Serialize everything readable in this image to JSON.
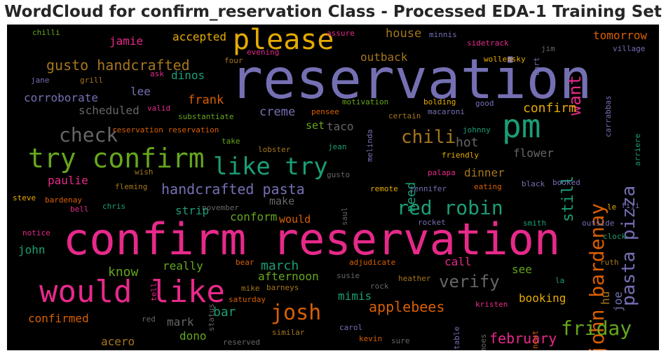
{
  "title": "WordCloud for confirm_reservation Class - Processed EDA-1 Training Set",
  "chart_data": {
    "type": "wordcloud",
    "title": "WordCloud for confirm_reservation Class - Processed EDA-1 Training Set",
    "background": "#000000",
    "colormap": "Dark2",
    "words": [
      {
        "text": "reservation",
        "color": "#7570b3"
      },
      {
        "text": "confirm reservation",
        "color": "#e7298a"
      },
      {
        "text": "would like",
        "color": "#e7298a"
      },
      {
        "text": "try confirm",
        "color": "#66a61e"
      },
      {
        "text": "please",
        "color": "#e6ab02"
      },
      {
        "text": "pm",
        "color": "#1b9e77"
      },
      {
        "text": "like try",
        "color": "#1b9e77"
      },
      {
        "text": "check",
        "color": "#666666"
      },
      {
        "text": "red robin",
        "color": "#1b9e77"
      },
      {
        "text": "josh",
        "color": "#d95f02"
      },
      {
        "text": "john bardenay",
        "color": "#d95f02"
      },
      {
        "text": "pasta pizza",
        "color": "#7570b3"
      },
      {
        "text": "friday",
        "color": "#66a61e"
      },
      {
        "text": "gusto handcrafted",
        "color": "#a6761d"
      },
      {
        "text": "chili",
        "color": "#a6761d"
      },
      {
        "text": "handcrafted pasta",
        "color": "#7570b3"
      },
      {
        "text": "want",
        "color": "#e7298a"
      },
      {
        "text": "verify",
        "color": "#666666"
      },
      {
        "text": "applebees",
        "color": "#d95f02"
      },
      {
        "text": "february",
        "color": "#e7298a"
      },
      {
        "text": "still",
        "color": "#1b9e77"
      },
      {
        "text": "confirm",
        "color": "#e6ab02"
      },
      {
        "text": "hot",
        "color": "#666666"
      },
      {
        "text": "need",
        "color": "#1b9e77"
      },
      {
        "text": "house",
        "color": "#a6761d"
      },
      {
        "text": "outback",
        "color": "#a6761d"
      },
      {
        "text": "tomorrow",
        "color": "#d95f02"
      },
      {
        "text": "corroborate",
        "color": "#7570b3"
      },
      {
        "text": "frank",
        "color": "#d95f02"
      },
      {
        "text": "scheduled",
        "color": "#666666"
      },
      {
        "text": "jamie",
        "color": "#e7298a"
      },
      {
        "text": "accepted",
        "color": "#e6ab02"
      },
      {
        "text": "dinos",
        "color": "#1b9e77"
      },
      {
        "text": "lee",
        "color": "#7570b3"
      },
      {
        "text": "creme",
        "color": "#7570b3"
      },
      {
        "text": "set",
        "color": "#66a61e"
      },
      {
        "text": "taco",
        "color": "#666666"
      },
      {
        "text": "flower",
        "color": "#666666"
      },
      {
        "text": "dinner",
        "color": "#a6761d"
      },
      {
        "text": "paulie",
        "color": "#e7298a"
      },
      {
        "text": "make",
        "color": "#666666"
      },
      {
        "text": "strip",
        "color": "#1b9e77"
      },
      {
        "text": "conform",
        "color": "#66a61e"
      },
      {
        "text": "would",
        "color": "#d95f02"
      },
      {
        "text": "john",
        "color": "#1b9e77"
      },
      {
        "text": "know",
        "color": "#66a61e"
      },
      {
        "text": "really",
        "color": "#66a61e"
      },
      {
        "text": "march",
        "color": "#1b9e77"
      },
      {
        "text": "afternoon",
        "color": "#66a61e"
      },
      {
        "text": "call",
        "color": "#e7298a"
      },
      {
        "text": "see",
        "color": "#66a61e"
      },
      {
        "text": "booking",
        "color": "#e6ab02"
      },
      {
        "text": "mimis",
        "color": "#1b9e77"
      },
      {
        "text": "bar",
        "color": "#1b9e77"
      },
      {
        "text": "confirmed",
        "color": "#d95f02"
      },
      {
        "text": "mark",
        "color": "#666666"
      },
      {
        "text": "dono",
        "color": "#66a61e"
      },
      {
        "text": "acero",
        "color": "#a6761d"
      },
      {
        "text": "hu",
        "color": "#a6761d"
      },
      {
        "text": "joe",
        "color": "#7570b3"
      },
      {
        "text": "chilli",
        "color": "#66a61e"
      },
      {
        "text": "assure",
        "color": "#e7298a"
      },
      {
        "text": "minnis",
        "color": "#7570b3"
      },
      {
        "text": "evening",
        "color": "#e7298a"
      },
      {
        "text": "sidetrack",
        "color": "#e7298a"
      },
      {
        "text": "bart",
        "color": "#7570b3"
      },
      {
        "text": "jim",
        "color": "#666666"
      },
      {
        "text": "village",
        "color": "#7570b3"
      },
      {
        "text": "wollensky",
        "color": "#e6ab02"
      },
      {
        "text": "four",
        "color": "#a6761d"
      },
      {
        "text": "jane",
        "color": "#7570b3"
      },
      {
        "text": "grill",
        "color": "#a6761d"
      },
      {
        "text": "ask",
        "color": "#e7298a"
      },
      {
        "text": "bolding",
        "color": "#e6ab02"
      },
      {
        "text": "good",
        "color": "#7570b3"
      },
      {
        "text": "motivation",
        "color": "#66a61e"
      },
      {
        "text": "macaroni",
        "color": "#7570b3"
      },
      {
        "text": "valid",
        "color": "#e7298a"
      },
      {
        "text": "substantiate",
        "color": "#66a61e"
      },
      {
        "text": "pensee",
        "color": "#d95f02"
      },
      {
        "text": "certain",
        "color": "#a6761d"
      },
      {
        "text": "johnny",
        "color": "#1b9e77"
      },
      {
        "text": "carrabbas",
        "color": "#7570b3"
      },
      {
        "text": "arriere",
        "color": "#1b9e77"
      },
      {
        "text": "reservation reservation",
        "color": "#d95f02"
      },
      {
        "text": "take",
        "color": "#66a61e"
      },
      {
        "text": "jean",
        "color": "#1b9e77"
      },
      {
        "text": "melinda",
        "color": "#7570b3"
      },
      {
        "text": "lobster",
        "color": "#a6761d"
      },
      {
        "text": "friendly",
        "color": "#e6ab02"
      },
      {
        "text": "wish",
        "color": "#a6761d"
      },
      {
        "text": "gusto",
        "color": "#666666"
      },
      {
        "text": "palapa",
        "color": "#e7298a"
      },
      {
        "text": "fleming",
        "color": "#a6761d"
      },
      {
        "text": "remote",
        "color": "#e6ab02"
      },
      {
        "text": "jennifer",
        "color": "#7570b3"
      },
      {
        "text": "eating",
        "color": "#d95f02"
      },
      {
        "text": "black",
        "color": "#7570b3"
      },
      {
        "text": "booked",
        "color": "#7570b3"
      },
      {
        "text": "steve",
        "color": "#e6ab02"
      },
      {
        "text": "bardenay",
        "color": "#d95f02"
      },
      {
        "text": "chris",
        "color": "#1b9e77"
      },
      {
        "text": "november",
        "color": "#666666"
      },
      {
        "text": "saul",
        "color": "#666666"
      },
      {
        "text": "bell",
        "color": "#e7298a"
      },
      {
        "text": "le",
        "color": "#e6ab02"
      },
      {
        "text": "fiji",
        "color": "#7570b3"
      },
      {
        "text": "rocket",
        "color": "#7570b3"
      },
      {
        "text": "smith",
        "color": "#1b9e77"
      },
      {
        "text": "outside",
        "color": "#7570b3"
      },
      {
        "text": "notice",
        "color": "#e7298a"
      },
      {
        "text": "clock",
        "color": "#1b9e77"
      },
      {
        "text": "bear",
        "color": "#d95f02"
      },
      {
        "text": "adjudicate",
        "color": "#d95f02"
      },
      {
        "text": "ruth",
        "color": "#a6761d"
      },
      {
        "text": "tell",
        "color": "#e7298a"
      },
      {
        "text": "susie",
        "color": "#666666"
      },
      {
        "text": "barneys",
        "color": "#a6761d"
      },
      {
        "text": "heather",
        "color": "#a6761d"
      },
      {
        "text": "la",
        "color": "#1b9e77"
      },
      {
        "text": "status",
        "color": "#666666"
      },
      {
        "text": "mike",
        "color": "#a6761d"
      },
      {
        "text": "saturday",
        "color": "#d95f02"
      },
      {
        "text": "rock",
        "color": "#666666"
      },
      {
        "text": "kristen",
        "color": "#e7298a"
      },
      {
        "text": "table",
        "color": "#7570b3"
      },
      {
        "text": "red",
        "color": "#666666"
      },
      {
        "text": "moes",
        "color": "#666666"
      },
      {
        "text": "next",
        "color": "#d95f02"
      },
      {
        "text": "similar",
        "color": "#a6761d"
      },
      {
        "text": "carol",
        "color": "#7570b3"
      },
      {
        "text": "kevin",
        "color": "#d95f02"
      },
      {
        "text": "sure",
        "color": "#666666"
      },
      {
        "text": "reserved",
        "color": "#666666"
      }
    ]
  }
}
